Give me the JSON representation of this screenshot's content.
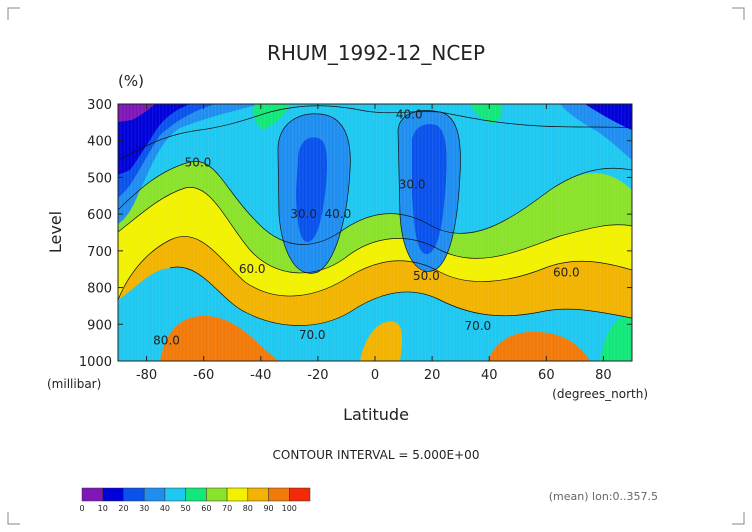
{
  "chart_data": {
    "type": "heatmap",
    "title": "RHUM_1992-12_NCEP",
    "unit_label": "(%)",
    "ylabel": "Level",
    "ylabel_unit": "(millibar)",
    "xlabel": "Latitude",
    "xlabel_unit": "(degrees_north)",
    "xlim": [
      -90,
      90
    ],
    "ylim": [
      1000,
      300
    ],
    "x_ticks": [
      "-80",
      "-60",
      "-40",
      "-20",
      "0",
      "20",
      "40",
      "60",
      "80"
    ],
    "x_tick_values": [
      -80,
      -60,
      -40,
      -20,
      0,
      20,
      40,
      60,
      80
    ],
    "y_ticks": [
      "300",
      "400",
      "500",
      "600",
      "700",
      "800",
      "900",
      "1000"
    ],
    "y_tick_values": [
      300,
      400,
      500,
      600,
      700,
      800,
      900,
      1000
    ],
    "contour_interval_text": "CONTOUR INTERVAL = 5.000E+00",
    "footnote": "(mean) lon:0..357.5",
    "contour_labels": [
      {
        "text": "40.0",
        "lat": 12,
        "lev": 340
      },
      {
        "text": "50.0",
        "lat": -62,
        "lev": 470
      },
      {
        "text": "30.0",
        "lat": -25,
        "lev": 610
      },
      {
        "text": "40.0",
        "lat": -13,
        "lev": 610
      },
      {
        "text": "30.0",
        "lat": 13,
        "lev": 530
      },
      {
        "text": "60.0",
        "lat": -43,
        "lev": 760
      },
      {
        "text": "50.0",
        "lat": 18,
        "lev": 780
      },
      {
        "text": "60.0",
        "lat": 67,
        "lev": 770
      },
      {
        "text": "70.0",
        "lat": -22,
        "lev": 940
      },
      {
        "text": "70.0",
        "lat": 36,
        "lev": 915
      },
      {
        "text": "80.0",
        "lat": -73,
        "lev": 955
      }
    ],
    "colorbar": {
      "levels": [
        "0",
        "10",
        "20",
        "30",
        "40",
        "50",
        "60",
        "70",
        "80",
        "90",
        "100"
      ],
      "colors": [
        "#7f17b8",
        "#0000d8",
        "#0a52ec",
        "#1f8ef0",
        "#1fc8f0",
        "#12e87a",
        "#8ae22a",
        "#f2f200",
        "#f2b400",
        "#f27a0a",
        "#f22a0a"
      ]
    }
  }
}
